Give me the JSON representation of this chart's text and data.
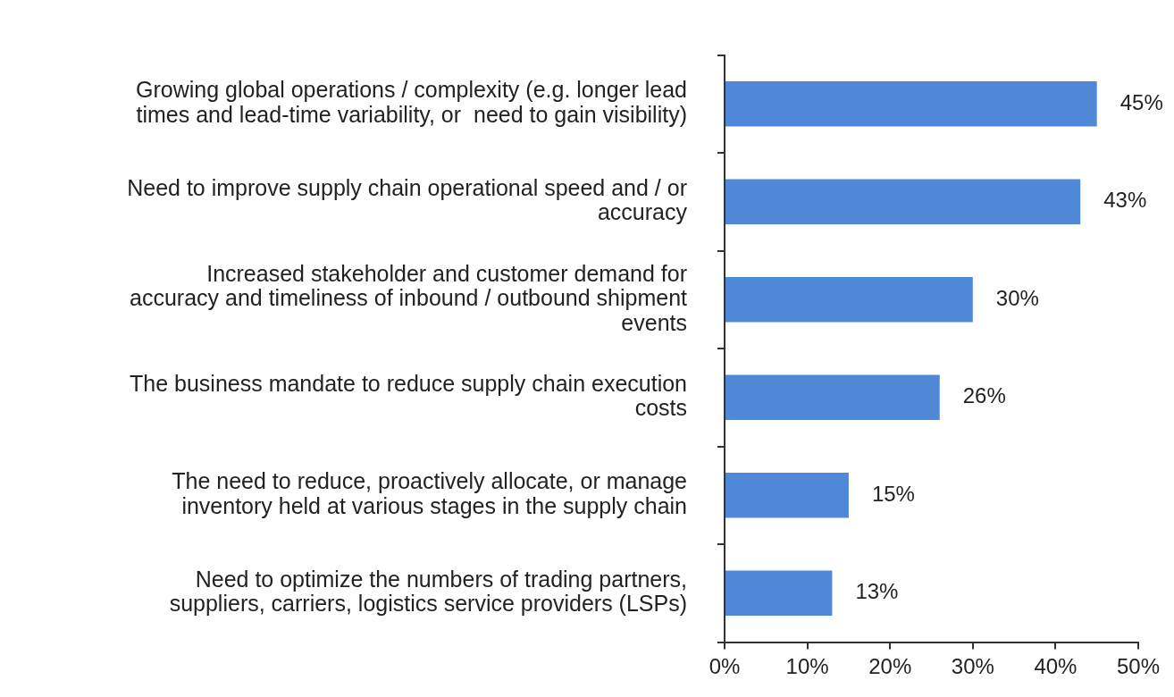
{
  "chart_data": {
    "type": "bar",
    "orientation": "horizontal",
    "categories": [
      "Growing global operations / complexity (e.g. longer lead\ntimes and lead-time variability, or  need to gain visibility)",
      "Need to improve supply chain operational speed and / or\naccuracy",
      "Increased stakeholder and customer demand for\naccuracy and timeliness of inbound / outbound shipment\nevents",
      "The business mandate to reduce supply chain execution\ncosts",
      "The need to reduce, proactively allocate, or manage\ninventory held at various stages in the supply chain",
      "Need to optimize the numbers of trading partners,\nsuppliers, carriers, logistics service providers (LSPs)"
    ],
    "values": [
      45,
      43,
      30,
      26,
      15,
      13
    ],
    "value_labels": [
      "45%",
      "43%",
      "30%",
      "26%",
      "15%",
      "13%"
    ],
    "color": "#4f88d6",
    "xlim": [
      0,
      50
    ],
    "xticks": [
      {
        "value": 0,
        "label": "0%"
      },
      {
        "value": 10,
        "label": "10%"
      },
      {
        "value": 20,
        "label": "20%"
      },
      {
        "value": 30,
        "label": "30%"
      },
      {
        "value": 40,
        "label": "40%"
      },
      {
        "value": 50,
        "label": "50%"
      }
    ]
  }
}
